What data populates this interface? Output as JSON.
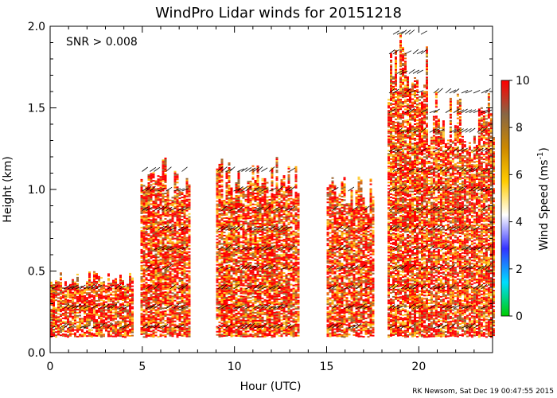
{
  "chart_data": {
    "type": "heatmap",
    "title": "WindPro Lidar winds for 20151218",
    "xlabel": "Hour (UTC)",
    "ylabel": "Height (km)",
    "xlim": [
      0,
      24
    ],
    "ylim": [
      0,
      2.0
    ],
    "x_ticks": [
      "0",
      "5",
      "10",
      "15",
      "20"
    ],
    "y_ticks": [
      "0.0",
      "0.5",
      "1.0",
      "1.5",
      "2.0"
    ],
    "annotation": "SNR > 0.008",
    "footer": "RK Newsom, Sat Dec 19 00:47:55 2015",
    "colorbar": {
      "label": "Wind Speed (ms",
      "label_sup": "-1",
      "label_tail": ")",
      "range": [
        0,
        10
      ],
      "ticks": [
        "0",
        "2",
        "4",
        "6",
        "8",
        "10"
      ],
      "colors": [
        "#00cc00",
        "#00ddff",
        "#3333ff",
        "#ffffff",
        "#ffcc00",
        "#cc8800",
        "#886644",
        "#ff0000"
      ]
    },
    "wind_regions": [
      {
        "x": [
          0.0,
          4.5
        ],
        "y": [
          0.1,
          0.5
        ],
        "speed": 9
      },
      {
        "x": [
          4.9,
          7.5
        ],
        "y": [
          0.1,
          1.2
        ],
        "speed": 9
      },
      {
        "x": [
          9.0,
          13.5
        ],
        "y": [
          0.1,
          1.2
        ],
        "speed": 9
      },
      {
        "x": [
          15.0,
          17.5
        ],
        "y": [
          0.1,
          1.1
        ],
        "speed": 8
      },
      {
        "x": [
          18.3,
          20.5
        ],
        "y": [
          0.1,
          2.0
        ],
        "speed": 8
      },
      {
        "x": [
          20.5,
          24.0
        ],
        "y": [
          0.1,
          1.6
        ],
        "speed": 8
      }
    ]
  }
}
